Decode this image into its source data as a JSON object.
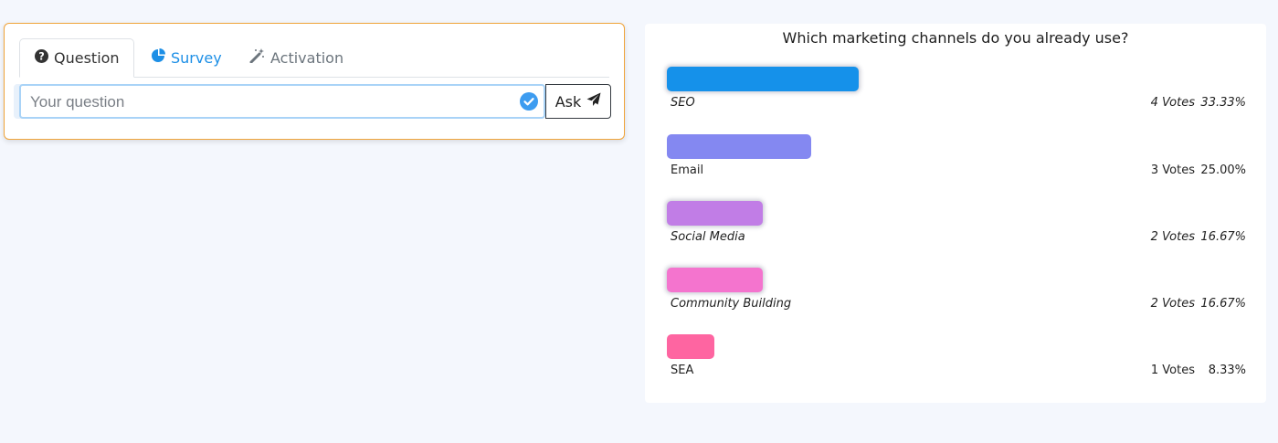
{
  "tabs": {
    "question": "Question",
    "survey": "Survey",
    "activation": "Activation"
  },
  "ask": {
    "placeholder": "Your question",
    "button_label": "Ask"
  },
  "poll": {
    "title": "Which marketing channels do you already use?",
    "options": [
      {
        "label": "SEO",
        "votes": "4 Votes",
        "percent": "33.33%",
        "fraction": 0.3333,
        "color": "#1591ea"
      },
      {
        "label": "Email",
        "votes": "3 Votes",
        "percent": "25.00%",
        "fraction": 0.25,
        "color": "#8488f1"
      },
      {
        "label": "Social Media",
        "votes": "2 Votes",
        "percent": "16.67%",
        "fraction": 0.1667,
        "color": "#c17de6"
      },
      {
        "label": "Community Building",
        "votes": "2 Votes",
        "percent": "16.67%",
        "fraction": 0.1667,
        "color": "#f474ce"
      },
      {
        "label": "SEA",
        "votes": "1 Votes",
        "percent": "8.33%",
        "fraction": 0.0833,
        "color": "#fe65a1"
      }
    ]
  },
  "colors": {
    "accent": "#1d8fe6",
    "panel_border": "#f0a43a"
  }
}
